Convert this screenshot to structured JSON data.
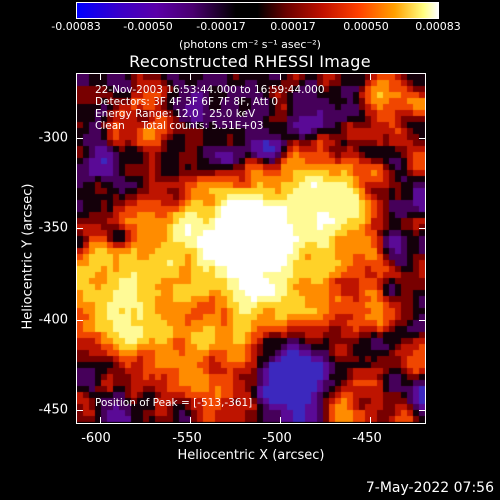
{
  "colorbar": {
    "ticks": [
      "-0.00083",
      "-0.00050",
      "-0.00017",
      "0.00017",
      "0.00050",
      "0.00083"
    ],
    "unit": "(photons cm⁻² s⁻¹ asec⁻²)"
  },
  "title": "Reconstructed RHESSI Image",
  "info": {
    "time_range": "22-Nov-2003 16:53:44.000 to 16:59:44.000",
    "detectors": "Detectors: 3F 4F 5F 6F 7F 8F, Att 0",
    "energy": "Energy Range: 12.0 - 25.0 keV",
    "clean": "Clean     Total counts: 5.51E+03",
    "peak": "Position of Peak = [-513,-361]"
  },
  "axes": {
    "xlabel": "Heliocentric X (arcsec)",
    "ylabel": "Heliocentric Y (arcsec)",
    "xticks": [
      "-600",
      "-550",
      "-500",
      "-450"
    ],
    "yticks": [
      "-300",
      "-350",
      "-400",
      "-450"
    ]
  },
  "datestamp": "7-May-2022 07:56"
}
